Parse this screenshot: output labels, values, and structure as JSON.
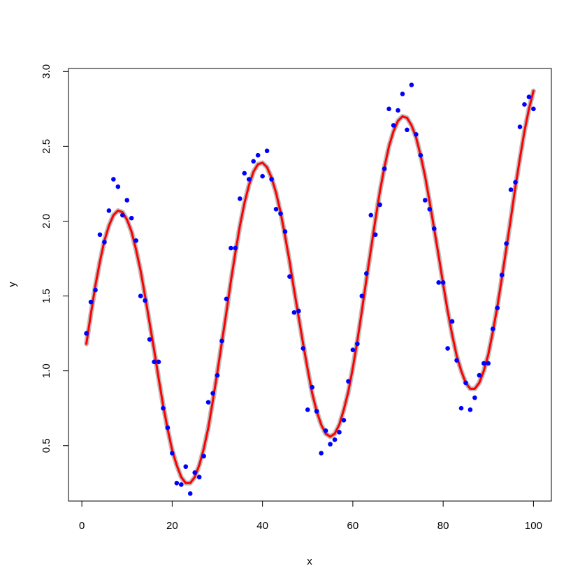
{
  "chart_data": {
    "type": "scatter",
    "xlabel": "x",
    "ylabel": "y",
    "x": [
      1,
      2,
      3,
      4,
      5,
      6,
      7,
      8,
      9,
      10,
      11,
      12,
      13,
      14,
      15,
      16,
      17,
      18,
      19,
      20,
      21,
      22,
      23,
      24,
      25,
      26,
      27,
      28,
      29,
      30,
      31,
      32,
      33,
      34,
      35,
      36,
      37,
      38,
      39,
      40,
      41,
      42,
      43,
      44,
      45,
      46,
      47,
      48,
      49,
      50,
      51,
      52,
      53,
      54,
      55,
      56,
      57,
      58,
      59,
      60,
      61,
      62,
      63,
      64,
      65,
      66,
      67,
      68,
      69,
      70,
      71,
      72,
      73,
      74,
      75,
      76,
      77,
      78,
      79,
      80,
      81,
      82,
      83,
      84,
      85,
      86,
      87,
      88,
      89,
      90,
      91,
      92,
      93,
      94,
      95,
      96,
      97,
      98,
      99,
      100
    ],
    "series": [
      {
        "type": "line",
        "color": "#bebebe",
        "line_width": 7,
        "values": [
          1.18,
          1.38,
          1.57,
          1.73,
          1.87,
          1.97,
          2.04,
          2.07,
          2.06,
          2.01,
          1.93,
          1.81,
          1.67,
          1.5,
          1.32,
          1.14,
          0.95,
          0.77,
          0.61,
          0.47,
          0.37,
          0.29,
          0.25,
          0.25,
          0.29,
          0.37,
          0.48,
          0.62,
          0.8,
          0.99,
          1.19,
          1.39,
          1.6,
          1.79,
          1.97,
          2.12,
          2.24,
          2.33,
          2.38,
          2.39,
          2.36,
          2.29,
          2.19,
          2.06,
          1.9,
          1.73,
          1.54,
          1.36,
          1.18,
          1.01,
          0.85,
          0.73,
          0.64,
          0.58,
          0.56,
          0.58,
          0.64,
          0.74,
          0.86,
          1.02,
          1.2,
          1.4,
          1.61,
          1.81,
          2.01,
          2.2,
          2.36,
          2.5,
          2.6,
          2.67,
          2.7,
          2.69,
          2.64,
          2.56,
          2.44,
          2.3,
          2.13,
          1.95,
          1.77,
          1.58,
          1.4,
          1.24,
          1.1,
          1.0,
          0.92,
          0.88,
          0.88,
          0.92,
          1.0,
          1.11,
          1.26,
          1.43,
          1.62,
          1.82,
          2.02,
          2.23,
          2.42,
          2.6,
          2.75,
          2.87
        ]
      },
      {
        "type": "line",
        "color": "#ff0000",
        "line_width": 3,
        "values": [
          1.18,
          1.38,
          1.57,
          1.73,
          1.87,
          1.97,
          2.04,
          2.07,
          2.06,
          2.01,
          1.93,
          1.81,
          1.67,
          1.5,
          1.32,
          1.14,
          0.95,
          0.77,
          0.61,
          0.47,
          0.37,
          0.29,
          0.25,
          0.25,
          0.29,
          0.37,
          0.48,
          0.62,
          0.8,
          0.99,
          1.19,
          1.39,
          1.6,
          1.79,
          1.97,
          2.12,
          2.24,
          2.33,
          2.38,
          2.39,
          2.36,
          2.29,
          2.19,
          2.06,
          1.9,
          1.73,
          1.54,
          1.36,
          1.18,
          1.01,
          0.85,
          0.73,
          0.64,
          0.58,
          0.56,
          0.58,
          0.64,
          0.74,
          0.86,
          1.02,
          1.2,
          1.4,
          1.61,
          1.81,
          2.01,
          2.2,
          2.36,
          2.5,
          2.6,
          2.67,
          2.7,
          2.69,
          2.64,
          2.56,
          2.44,
          2.3,
          2.13,
          1.95,
          1.77,
          1.58,
          1.4,
          1.24,
          1.1,
          1.0,
          0.92,
          0.88,
          0.88,
          0.92,
          1.0,
          1.11,
          1.26,
          1.43,
          1.62,
          1.82,
          2.02,
          2.23,
          2.42,
          2.6,
          2.75,
          2.87
        ]
      },
      {
        "type": "scatter",
        "color": "#0000ff",
        "values": [
          1.25,
          1.46,
          1.54,
          1.91,
          1.86,
          2.07,
          2.28,
          2.23,
          2.04,
          2.14,
          2.02,
          1.87,
          1.5,
          1.47,
          1.21,
          1.06,
          1.06,
          0.75,
          0.62,
          0.45,
          0.25,
          0.24,
          0.36,
          0.18,
          0.32,
          0.29,
          0.43,
          0.79,
          0.85,
          0.97,
          1.2,
          1.48,
          1.82,
          1.82,
          2.15,
          2.32,
          2.28,
          2.4,
          2.44,
          2.3,
          2.47,
          2.28,
          2.08,
          2.05,
          1.93,
          1.63,
          1.39,
          1.4,
          1.15,
          0.74,
          0.89,
          0.73,
          0.45,
          0.6,
          0.51,
          0.54,
          0.59,
          0.67,
          0.93,
          1.14,
          1.18,
          1.5,
          1.65,
          2.04,
          1.91,
          2.11,
          2.35,
          2.75,
          2.64,
          2.74,
          2.85,
          2.61,
          2.91,
          2.58,
          2.44,
          2.14,
          2.08,
          1.95,
          1.59,
          1.59,
          1.15,
          1.33,
          1.07,
          0.75,
          0.92,
          0.74,
          0.82,
          0.97,
          1.05,
          1.05,
          1.28,
          1.42,
          1.64,
          1.85,
          2.21,
          2.26,
          2.63,
          2.78,
          2.83,
          2.75
        ]
      }
    ],
    "xlim": [
      -2.96,
      103.96
    ],
    "xticks": [
      0,
      20,
      40,
      60,
      80,
      100
    ],
    "ylim": [
      0.13,
      3.02
    ],
    "yticks": [
      0.5,
      1.0,
      1.5,
      2.0,
      2.5,
      3.0
    ]
  }
}
